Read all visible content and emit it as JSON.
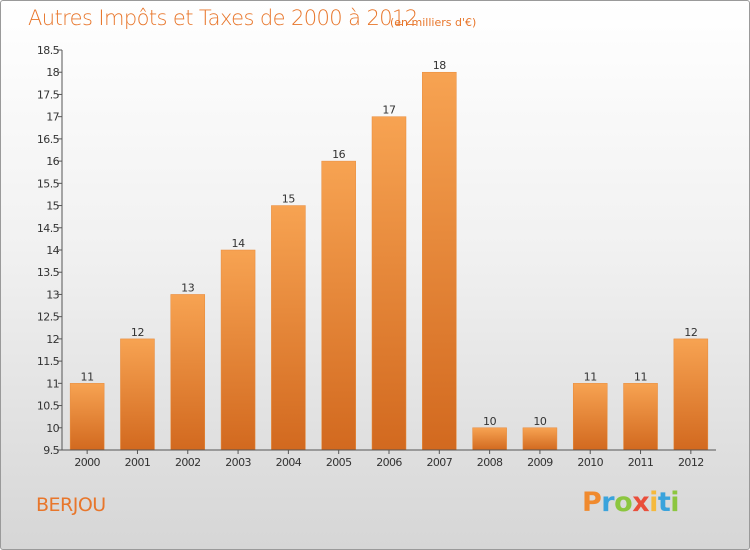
{
  "chart_data": {
    "type": "bar",
    "title": "Autres Impôts et Taxes de 2000 à 2012",
    "subtitle": "(en milliers d'€)",
    "categories": [
      "2000",
      "2001",
      "2002",
      "2003",
      "2004",
      "2005",
      "2006",
      "2007",
      "2008",
      "2009",
      "2010",
      "2011",
      "2012"
    ],
    "values": [
      11,
      12,
      13,
      14,
      15,
      16,
      17,
      18,
      10,
      10,
      11,
      11,
      12
    ],
    "data_labels": [
      "11",
      "12",
      "13",
      "14",
      "15",
      "16",
      "17",
      "18",
      "10",
      "10",
      "11",
      "11",
      "12"
    ],
    "ylim": [
      9.5,
      18.5
    ],
    "yticks": [
      "9.5",
      "10",
      "10.5",
      "11",
      "11.5",
      "12",
      "12.5",
      "13",
      "13.5",
      "14",
      "14.5",
      "15",
      "15.5",
      "16",
      "16.5",
      "17",
      "17.5",
      "18",
      "18.5"
    ],
    "xlabel": "",
    "ylabel": "",
    "bar_color": "#f0892f",
    "grid": false
  },
  "commune": "BERJOU",
  "logo": {
    "letters": [
      "P",
      "r",
      "o",
      "x",
      "i",
      "t",
      "i"
    ],
    "colors": [
      "#f08a2e",
      "#3aa3dc",
      "#8cc63f",
      "#e94e3b",
      "#f5b93c",
      "#3aa3dc",
      "#8cc63f"
    ]
  }
}
